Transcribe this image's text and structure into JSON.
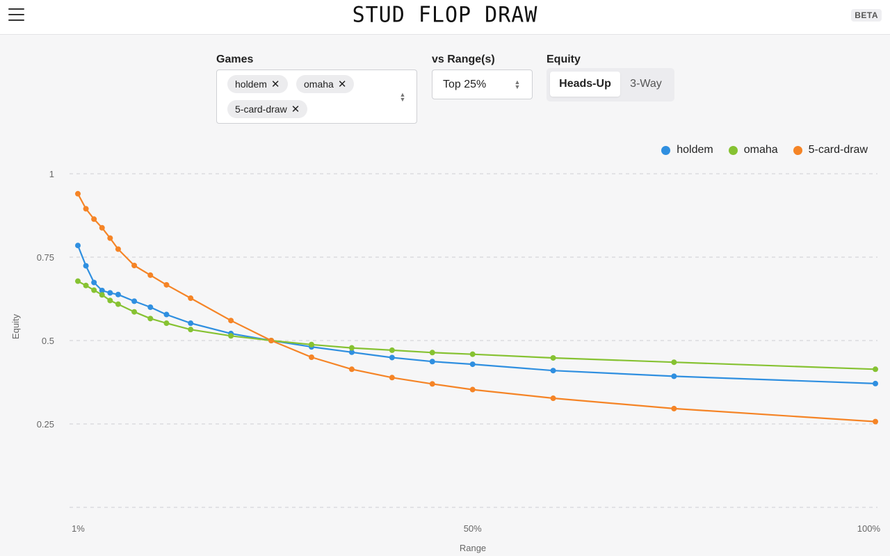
{
  "header": {
    "title": "STUD FLOP DRAW",
    "badge": "BETA"
  },
  "controls": {
    "games_label": "Games",
    "games_selected": [
      "holdem",
      "omaha",
      "5-card-draw"
    ],
    "range_label": "vs Range(s)",
    "range_value": "Top 25%",
    "equity_label": "Equity",
    "equity_options": [
      "Heads-Up",
      "3-Way"
    ],
    "equity_selected": "Heads-Up"
  },
  "colors": {
    "holdem": "#2f8fe0",
    "omaha": "#86c232",
    "5-card-draw": "#f58426",
    "grid": "#dcdcdf"
  },
  "chart_data": {
    "type": "line",
    "xlabel": "Range",
    "ylabel": "Equity",
    "x_ticks": [
      "1%",
      "50%",
      "100%"
    ],
    "y_ticks": [
      "1",
      "0.75",
      "0.5",
      "0.25"
    ],
    "xlim": [
      1,
      100
    ],
    "ylim": [
      0,
      1
    ],
    "grid": true,
    "legend_position": "top-right",
    "series": [
      {
        "name": "holdem",
        "color": "#2f8fe0",
        "x": [
          1,
          2,
          3,
          4,
          5,
          6,
          8,
          10,
          12,
          15,
          20,
          25,
          30,
          35,
          40,
          45,
          50,
          60,
          75,
          100
        ],
        "y": [
          0.785,
          0.724,
          0.674,
          0.65,
          0.643,
          0.638,
          0.618,
          0.6,
          0.578,
          0.552,
          0.521,
          0.5,
          0.481,
          0.465,
          0.449,
          0.437,
          0.429,
          0.41,
          0.393,
          0.371
        ]
      },
      {
        "name": "omaha",
        "color": "#86c232",
        "x": [
          1,
          2,
          3,
          4,
          5,
          6,
          8,
          10,
          12,
          15,
          20,
          25,
          30,
          35,
          40,
          45,
          50,
          60,
          75,
          100
        ],
        "y": [
          0.678,
          0.665,
          0.651,
          0.637,
          0.62,
          0.609,
          0.586,
          0.566,
          0.552,
          0.533,
          0.514,
          0.5,
          0.488,
          0.478,
          0.471,
          0.464,
          0.459,
          0.448,
          0.435,
          0.414
        ]
      },
      {
        "name": "5-card-draw",
        "color": "#f58426",
        "x": [
          1,
          2,
          3,
          4,
          5,
          6,
          8,
          10,
          12,
          15,
          20,
          25,
          30,
          35,
          40,
          45,
          50,
          60,
          75,
          100
        ],
        "y": [
          0.94,
          0.895,
          0.864,
          0.838,
          0.807,
          0.774,
          0.725,
          0.696,
          0.667,
          0.627,
          0.56,
          0.5,
          0.45,
          0.414,
          0.389,
          0.37,
          0.353,
          0.327,
          0.296,
          0.257
        ]
      }
    ]
  }
}
